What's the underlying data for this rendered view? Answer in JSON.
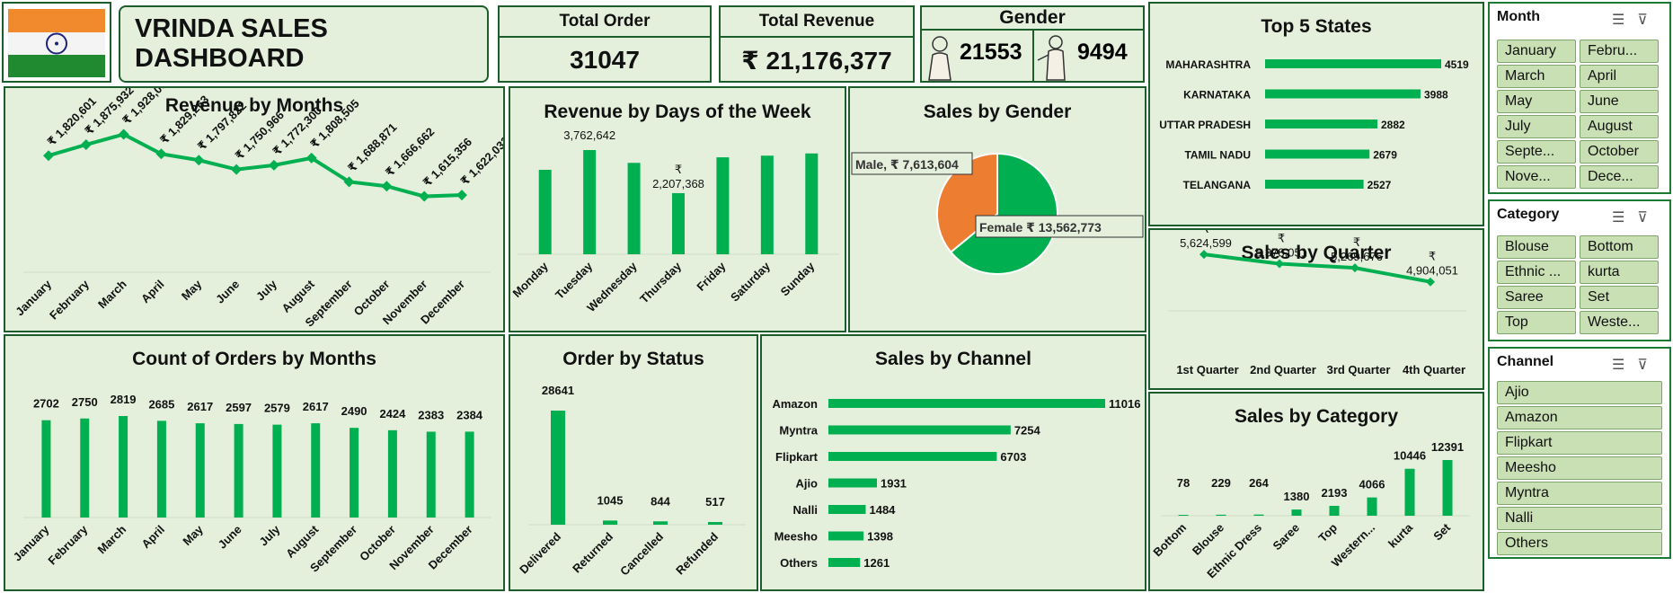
{
  "header": {
    "title": "VRINDA SALES DASHBOARD"
  },
  "kpi": {
    "total_order": {
      "label": "Total Order",
      "value": "31047"
    },
    "total_revenue": {
      "label": "Total Revenue",
      "value": "₹ 21,176,377"
    },
    "gender": {
      "label": "Gender",
      "female": "21553",
      "male": "9494"
    }
  },
  "colors": {
    "accent": "#00b050",
    "male": "#ed7d31",
    "panel": "#e4efdc",
    "border": "#1b5e2b"
  },
  "chart_data": [
    {
      "id": "rev_month",
      "type": "line",
      "title": "Revenue by Months",
      "categories": [
        "January",
        "February",
        "March",
        "April",
        "May",
        "June",
        "July",
        "August",
        "September",
        "October",
        "November",
        "December"
      ],
      "values": [
        1820601,
        1875932,
        1928066,
        1829263,
        1797822,
        1750966,
        1772300,
        1808505,
        1688871,
        1666662,
        1615356,
        1622033
      ],
      "labels": [
        "₹ 1,820,601",
        "₹ 1,875,932",
        "₹ 1,928,066",
        "₹ 1,829,263",
        "₹ 1,797,822",
        "₹ 1,750,966",
        "₹ 1,772,300",
        "₹ 1,808,505",
        "₹ 1,688,871",
        "₹ 1,666,662",
        "₹ 1,615,356",
        "₹ 1,622,033"
      ]
    },
    {
      "id": "rev_days",
      "type": "bar",
      "title": "Revenue by Days of the Week",
      "categories": [
        "Monday",
        "Tuesday",
        "Wednesday",
        "Thursday",
        "Friday",
        "Saturday",
        "Sunday"
      ],
      "values": [
        3050000,
        3762642,
        3300000,
        2207368,
        3500000,
        3560000,
        3640000
      ],
      "data_labels": [
        "",
        "3,762,642",
        "",
        "₹ 2,207,368",
        "",
        "",
        ""
      ]
    },
    {
      "id": "gender_pie",
      "type": "pie",
      "title": "Sales by Gender",
      "slices": [
        {
          "name": "Female",
          "value": 13562773,
          "label": "₹ 13,562,773"
        },
        {
          "name": "Male",
          "value": 7613604,
          "label": "₹ 7,613,604"
        }
      ]
    },
    {
      "id": "top_states",
      "type": "bar",
      "orientation": "horizontal",
      "title": "Top 5 States",
      "categories": [
        "MAHARASHTRA",
        "KARNATAKA",
        "UTTAR PRADESH",
        "TAMIL NADU",
        "TELANGANA"
      ],
      "values": [
        4519,
        3988,
        2882,
        2679,
        2527
      ]
    },
    {
      "id": "quarter",
      "type": "line",
      "title": "Sales by Quarter",
      "categories": [
        "1st Quarter",
        "2nd Quarter",
        "3rd Quarter",
        "4th Quarter"
      ],
      "values": [
        5624599,
        5378051,
        5269676,
        4904051
      ],
      "labels": [
        "5,624,599",
        "5,378,051",
        "5,269,676",
        "4,904,051"
      ]
    },
    {
      "id": "orders_month",
      "type": "bar",
      "title": "Count of Orders by Months",
      "categories": [
        "January",
        "February",
        "March",
        "April",
        "May",
        "June",
        "July",
        "August",
        "September",
        "October",
        "November",
        "December"
      ],
      "values": [
        2702,
        2750,
        2819,
        2685,
        2617,
        2597,
        2579,
        2617,
        2490,
        2424,
        2383,
        2384
      ]
    },
    {
      "id": "status",
      "type": "bar",
      "title": "Order by Status",
      "categories": [
        "Delivered",
        "Returned",
        "Cancelled",
        "Refunded"
      ],
      "values": [
        28641,
        1045,
        844,
        517
      ]
    },
    {
      "id": "channel",
      "type": "bar",
      "orientation": "horizontal",
      "title": "Sales by Channel",
      "categories": [
        "Amazon",
        "Myntra",
        "Flipkart",
        "Ajio",
        "Nalli",
        "Meesho",
        "Others"
      ],
      "values": [
        11016,
        7254,
        6703,
        1931,
        1484,
        1398,
        1261
      ]
    },
    {
      "id": "category",
      "type": "bar",
      "title": "Sales by Category",
      "categories": [
        "Bottom",
        "Blouse",
        "Ethnic Dress",
        "Saree",
        "Top",
        "Western...",
        "kurta",
        "Set"
      ],
      "values": [
        78,
        229,
        264,
        1380,
        2193,
        4066,
        10446,
        12391
      ]
    }
  ],
  "slicers": {
    "month": {
      "title": "Month",
      "items": [
        "January",
        "Febru...",
        "March",
        "April",
        "May",
        "June",
        "July",
        "August",
        "Septe...",
        "October",
        "Nove...",
        "Dece..."
      ]
    },
    "category": {
      "title": "Category",
      "items": [
        "Blouse",
        "Bottom",
        "Ethnic ...",
        "kurta",
        "Saree",
        "Set",
        "Top",
        "Weste..."
      ]
    },
    "channel": {
      "title": "Channel",
      "items": [
        "Ajio",
        "Amazon",
        "Flipkart",
        "Meesho",
        "Myntra",
        "Nalli",
        "Others"
      ]
    }
  },
  "rupee": "₹"
}
